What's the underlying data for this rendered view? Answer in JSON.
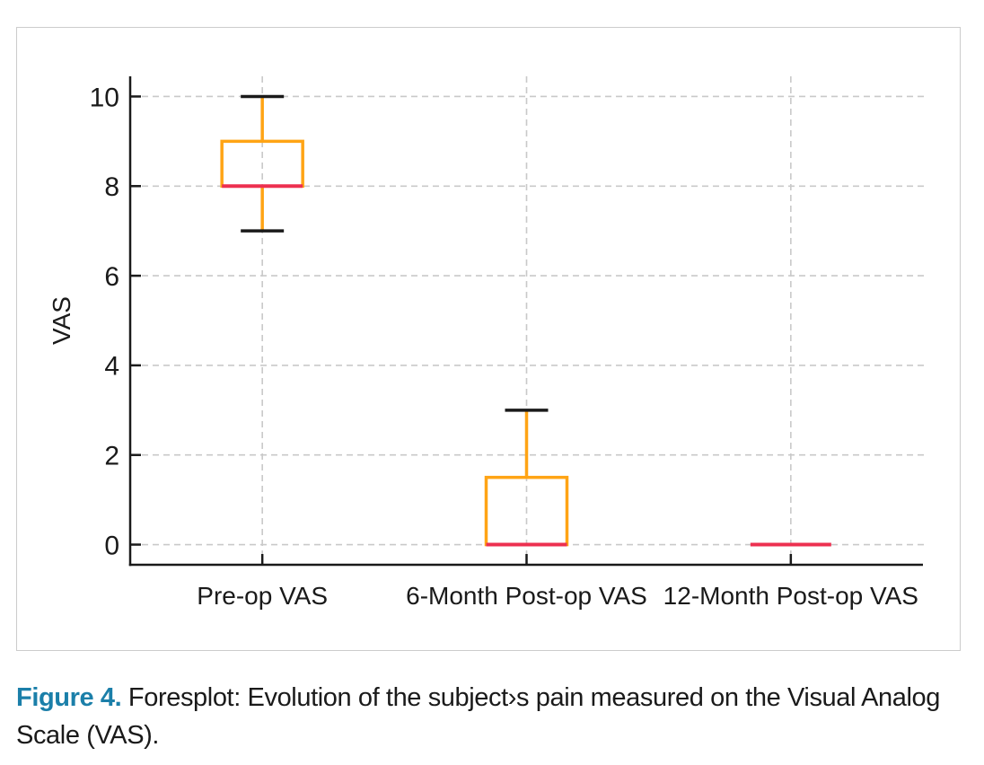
{
  "figure": {
    "caption_label": "Figure 4.",
    "caption_text": " Foresplot: Evolution of the subject›s pain measured on the Visual Analog Scale (VAS).",
    "caption_label_color": "#1b7fa9"
  },
  "chart_data": {
    "type": "boxplot",
    "title": "",
    "xlabel": "",
    "ylabel": "VAS",
    "categories": [
      "Pre-op VAS",
      "6-Month Post-op VAS",
      "12-Month Post-op VAS"
    ],
    "series": [
      {
        "name": "Pre-op VAS",
        "whisker_low": 7,
        "q1": 8,
        "median": 8,
        "q3": 9,
        "whisker_high": 10
      },
      {
        "name": "6-Month Post-op VAS",
        "whisker_low": 0,
        "q1": 0,
        "median": 0,
        "q3": 1.5,
        "whisker_high": 3
      },
      {
        "name": "12-Month Post-op VAS",
        "whisker_low": 0,
        "q1": 0,
        "median": 0,
        "q3": 0,
        "whisker_high": 0
      }
    ],
    "yticks": [
      0,
      2,
      4,
      6,
      8,
      10
    ],
    "ylim": [
      -0.45,
      10.45
    ],
    "grid": true,
    "legend": "none",
    "colors": {
      "box": "#ffa415",
      "whisker": "#ffa415",
      "median": "#ed3050",
      "cap": "#1a1a1a",
      "axis": "#1a1a1a",
      "grid": "#c9c9c9",
      "tick_label": "#1a1a1a"
    }
  }
}
